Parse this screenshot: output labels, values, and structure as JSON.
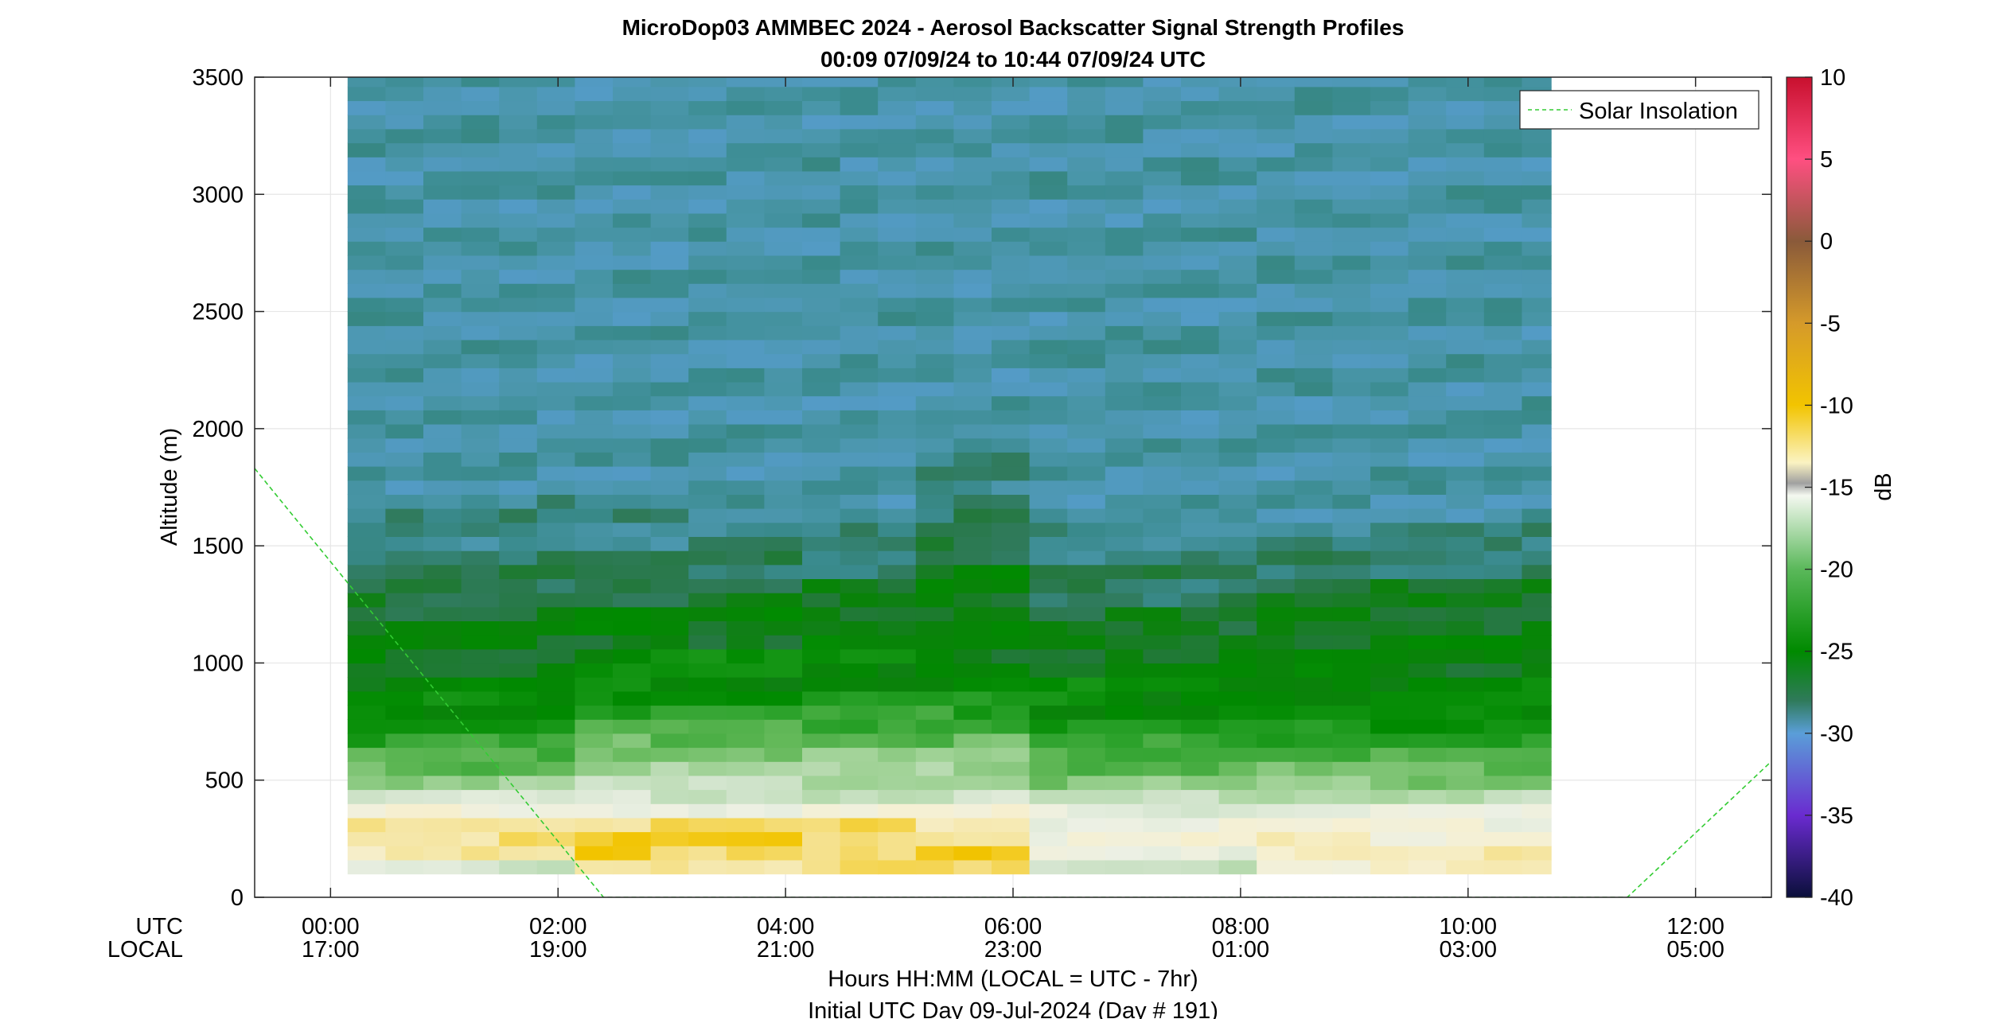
{
  "chart_data": {
    "type": "heatmap",
    "title": "MicroDop03 AMMBEC 2024 - Aerosol Backscatter Signal Strength Profiles",
    "subtitle": "00:09 07/09/24 to 10:44 07/09/24  UTC",
    "ylabel": "Altitude (m)",
    "xlabel": "Hours HH:MM  (LOCAL = UTC - 7hr)",
    "xlabel2": "Initial UTC Day 09-Jul-2024 (Day # 191)",
    "row_label_utc": "UTC",
    "row_label_local": "LOCAL",
    "xlim": [
      -0.667,
      12.667
    ],
    "ylim": [
      0,
      3500
    ],
    "x_ticks": [
      {
        "value": 0,
        "utc": "00:00",
        "local": "17:00"
      },
      {
        "value": 2,
        "utc": "02:00",
        "local": "19:00"
      },
      {
        "value": 4,
        "utc": "04:00",
        "local": "21:00"
      },
      {
        "value": 6,
        "utc": "06:00",
        "local": "23:00"
      },
      {
        "value": 8,
        "utc": "08:00",
        "local": "01:00"
      },
      {
        "value": 10,
        "utc": "10:00",
        "local": "03:00"
      },
      {
        "value": 12,
        "utc": "12:00",
        "local": "05:00"
      }
    ],
    "y_ticks": [
      0,
      500,
      1000,
      1500,
      2000,
      2500,
      3000,
      3500
    ],
    "y_tick_labels": [
      "0",
      "500",
      "1000",
      "1500",
      "2000",
      "2500",
      "3000",
      "3500"
    ],
    "grid": true,
    "colorbar": {
      "label": "dB",
      "range": [
        -40,
        10
      ],
      "ticks": [
        10,
        5,
        0,
        -5,
        -10,
        -15,
        -20,
        -25,
        -30,
        -35,
        -40
      ],
      "tick_labels": [
        "10",
        "5",
        "0",
        "-5",
        "-10",
        "-15",
        "-20",
        "-25",
        "-30",
        "-35",
        "-40"
      ]
    },
    "heatmap": {
      "x_start": 0.15,
      "x_end": 10.73,
      "column_width_hours": 0.333,
      "alt_start": 100,
      "alt_bin_m": 60,
      "alt_end": 3500,
      "profile_key": [
        "alt_m",
        "dB"
      ],
      "column_groups": [
        {
          "x_range": [
            0.15,
            2.15
          ],
          "profile": [
            [
              100,
              -17
            ],
            [
              160,
              -13
            ],
            [
              220,
              -12
            ],
            [
              280,
              -12
            ],
            [
              340,
              -15
            ],
            [
              400,
              -17
            ],
            [
              460,
              -19
            ],
            [
              520,
              -21
            ],
            [
              580,
              -22
            ],
            [
              640,
              -23
            ],
            [
              700,
              -24
            ],
            [
              760,
              -25
            ],
            [
              820,
              -25
            ],
            [
              880,
              -26
            ],
            [
              940,
              -26
            ],
            [
              1000,
              -26
            ],
            [
              1060,
              -26
            ],
            [
              1120,
              -26
            ],
            [
              1180,
              -27
            ],
            [
              1240,
              -27
            ],
            [
              1300,
              -28
            ],
            [
              1360,
              -28
            ],
            [
              1420,
              -28
            ],
            [
              1480,
              -29
            ],
            [
              1540,
              -29
            ],
            [
              1600,
              -29
            ],
            [
              1660,
              -29
            ],
            [
              1720,
              -30
            ]
          ]
        },
        {
          "x_range": [
            2.15,
            5.15
          ],
          "profile": [
            [
              100,
              -12
            ],
            [
              160,
              -11
            ],
            [
              220,
              -11
            ],
            [
              280,
              -12
            ],
            [
              340,
              -15
            ],
            [
              400,
              -17
            ],
            [
              460,
              -18
            ],
            [
              520,
              -19
            ],
            [
              580,
              -20
            ],
            [
              640,
              -21
            ],
            [
              700,
              -22
            ],
            [
              760,
              -23
            ],
            [
              820,
              -24
            ],
            [
              880,
              -25
            ],
            [
              940,
              -25
            ],
            [
              1000,
              -25
            ],
            [
              1060,
              -26
            ],
            [
              1120,
              -26
            ],
            [
              1180,
              -26
            ],
            [
              1240,
              -27
            ],
            [
              1300,
              -27
            ],
            [
              1360,
              -28
            ],
            [
              1420,
              -28
            ],
            [
              1480,
              -29
            ],
            [
              1540,
              -29
            ],
            [
              1600,
              -29
            ],
            [
              1660,
              -30
            ]
          ]
        },
        {
          "x_range": [
            5.15,
            6.15
          ],
          "profile": [
            [
              100,
              -12
            ],
            [
              160,
              -11
            ],
            [
              220,
              -12
            ],
            [
              280,
              -13
            ],
            [
              340,
              -15
            ],
            [
              400,
              -17
            ],
            [
              460,
              -18
            ],
            [
              520,
              -19
            ],
            [
              580,
              -20
            ],
            [
              640,
              -21
            ],
            [
              700,
              -22
            ],
            [
              760,
              -23
            ],
            [
              820,
              -24
            ],
            [
              880,
              -25
            ],
            [
              940,
              -25
            ],
            [
              1000,
              -26
            ],
            [
              1060,
              -26
            ],
            [
              1120,
              -26
            ],
            [
              1180,
              -26
            ],
            [
              1240,
              -26
            ],
            [
              1300,
              -26
            ],
            [
              1360,
              -26
            ],
            [
              1420,
              -27
            ],
            [
              1480,
              -27
            ],
            [
              1540,
              -28
            ],
            [
              1600,
              -28
            ],
            [
              1660,
              -28
            ],
            [
              1720,
              -29
            ],
            [
              1780,
              -29
            ],
            [
              1840,
              -29
            ],
            [
              1900,
              -29
            ],
            [
              1960,
              -30
            ]
          ]
        },
        {
          "x_range": [
            6.15,
            8.15
          ],
          "profile": [
            [
              100,
              -17
            ],
            [
              160,
              -16
            ],
            [
              220,
              -15
            ],
            [
              280,
              -15
            ],
            [
              340,
              -16
            ],
            [
              400,
              -18
            ],
            [
              460,
              -20
            ],
            [
              520,
              -21
            ],
            [
              580,
              -22
            ],
            [
              640,
              -23
            ],
            [
              700,
              -24
            ],
            [
              760,
              -25
            ],
            [
              820,
              -25
            ],
            [
              880,
              -25
            ],
            [
              940,
              -26
            ],
            [
              1000,
              -26
            ],
            [
              1060,
              -26
            ],
            [
              1120,
              -27
            ],
            [
              1180,
              -27
            ],
            [
              1240,
              -28
            ],
            [
              1300,
              -28
            ],
            [
              1360,
              -28
            ],
            [
              1420,
              -29
            ],
            [
              1480,
              -29
            ],
            [
              1540,
              -29
            ],
            [
              1600,
              -30
            ]
          ]
        },
        {
          "x_range": [
            8.15,
            10.73
          ],
          "profile": [
            [
              100,
              -14
            ],
            [
              160,
              -13
            ],
            [
              220,
              -14
            ],
            [
              280,
              -15
            ],
            [
              340,
              -16
            ],
            [
              400,
              -18
            ],
            [
              460,
              -20
            ],
            [
              520,
              -21
            ],
            [
              580,
              -22
            ],
            [
              640,
              -23
            ],
            [
              700,
              -24
            ],
            [
              760,
              -25
            ],
            [
              820,
              -25
            ],
            [
              880,
              -25
            ],
            [
              940,
              -26
            ],
            [
              1000,
              -26
            ],
            [
              1060,
              -26
            ],
            [
              1120,
              -26
            ],
            [
              1180,
              -26
            ],
            [
              1240,
              -27
            ],
            [
              1300,
              -27
            ],
            [
              1360,
              -28
            ],
            [
              1420,
              -28
            ],
            [
              1480,
              -29
            ],
            [
              1540,
              -29
            ],
            [
              1600,
              -30
            ]
          ]
        }
      ],
      "background_above_layer_dB": -30
    },
    "series": [
      {
        "name": "Solar Insolation",
        "style": "dashed",
        "color": "#33cc33",
        "x": [
          -0.667,
          2.4,
          11.4,
          12.667
        ],
        "y": [
          1830,
          0,
          0,
          580
        ]
      }
    ],
    "legend": {
      "location": "top-right",
      "entries": [
        "Solar Insolation"
      ]
    }
  }
}
